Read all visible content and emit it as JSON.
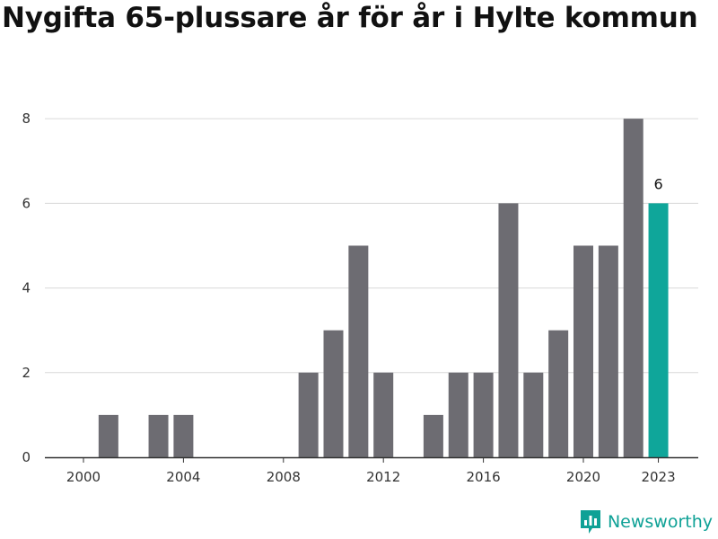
{
  "title": "Nygifta 65-plussare år för år i Hylte kommun",
  "brand": {
    "name": "Newsworthy",
    "icon": "bar-chart-icon",
    "color": "#0fa196"
  },
  "colors": {
    "bar": "#6d6c72",
    "highlight": "#0fa69a",
    "grid": "#d9d9d9",
    "axis": "#333333"
  },
  "chart_data": {
    "type": "bar",
    "title": "Nygifta 65-plussare år för år i Hylte kommun",
    "xlabel": "",
    "ylabel": "",
    "x": [
      2000,
      2001,
      2002,
      2003,
      2004,
      2005,
      2006,
      2007,
      2008,
      2009,
      2010,
      2011,
      2012,
      2013,
      2014,
      2015,
      2016,
      2017,
      2018,
      2019,
      2020,
      2021,
      2022,
      2023
    ],
    "values": [
      0,
      1,
      0,
      1,
      1,
      0,
      0,
      0,
      0,
      2,
      3,
      5,
      2,
      0,
      1,
      2,
      2,
      6,
      2,
      3,
      5,
      5,
      8,
      6
    ],
    "highlight": 2023,
    "data_labels": [
      {
        "x": 2023,
        "text": "6"
      }
    ],
    "x_ticks": [
      {
        "value": 2000,
        "label": "2000"
      },
      {
        "value": 2004,
        "label": "2004"
      },
      {
        "value": 2008,
        "label": "2008"
      },
      {
        "value": 2012,
        "label": "2012"
      },
      {
        "value": 2016,
        "label": "2016"
      },
      {
        "value": 2020,
        "label": "2020"
      },
      {
        "value": 2023,
        "label": "2023"
      }
    ],
    "y_ticks": [
      0,
      2,
      4,
      6,
      8
    ],
    "ylim": [
      0,
      8.3
    ],
    "grid": true,
    "legend": "none"
  }
}
